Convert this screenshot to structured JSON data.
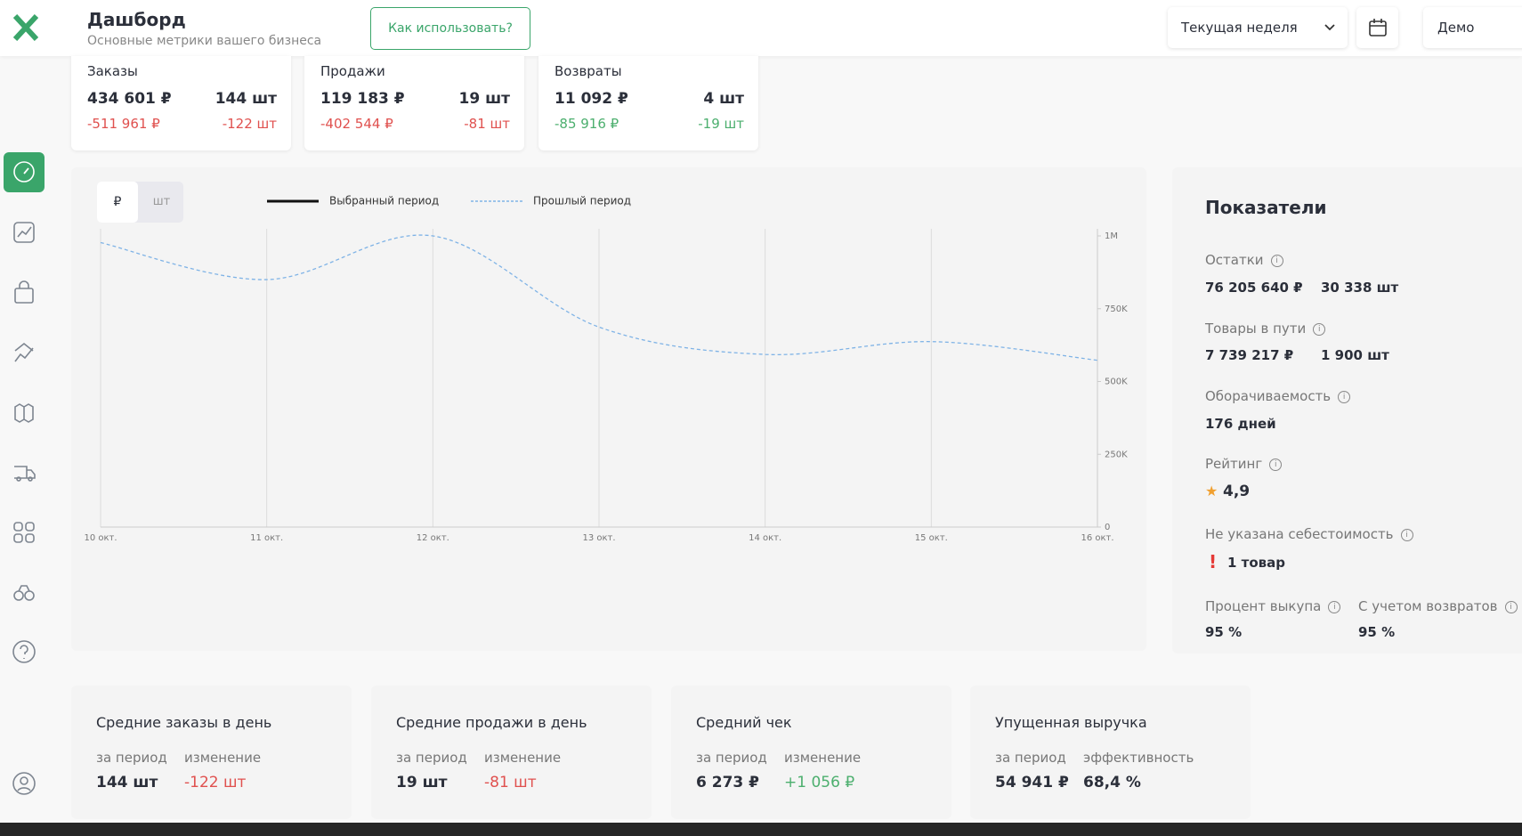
{
  "header": {
    "title": "Дашборд",
    "subtitle": "Основные метрики вашего бизнеса",
    "help_button": "Как использовать?",
    "period_select": "Текущая неделя",
    "user": "Демо"
  },
  "top_cards": [
    {
      "title": "Заказы",
      "amount": "434 601 ₽",
      "count": "144 шт",
      "amount_change": "-511 961 ₽",
      "count_change": "-122 шт",
      "change_color": "#e0514f"
    },
    {
      "title": "Продажи",
      "amount": "119 183 ₽",
      "count": "19 шт",
      "amount_change": "-402 544 ₽",
      "count_change": "-81 шт",
      "change_color": "#e0514f"
    },
    {
      "title": "Возвраты",
      "amount": "11 092 ₽",
      "count": "4 шт",
      "amount_change": "-85 916 ₽",
      "count_change": "-19 шт",
      "change_color": "#4caf6e"
    }
  ],
  "unit_toggle": [
    "₽",
    "шт"
  ],
  "chart_data": {
    "type": "line",
    "categories": [
      "10 окт.",
      "11 окт.",
      "12 окт.",
      "13 окт.",
      "14 окт.",
      "15 окт.",
      "16 окт."
    ],
    "series": [
      {
        "name": "Выбранный период",
        "color": "#111111",
        "values": [
          null,
          null,
          null,
          null,
          null,
          null,
          null
        ]
      },
      {
        "name": "Прошлый период",
        "color": "#7fb3e6",
        "dashed": true,
        "values": [
          977000,
          850000,
          1000000,
          687000,
          593000,
          637000,
          573000
        ]
      }
    ],
    "ylim": [
      0,
      1000000
    ],
    "yticks": [
      0,
      {
        "value": 250000,
        "label": "250K"
      },
      {
        "value": 500000,
        "label": "500K"
      },
      {
        "value": 750000,
        "label": "750K"
      },
      {
        "value": 1000000,
        "label": "1M"
      }
    ]
  },
  "indicators": {
    "title": "Показатели",
    "items": [
      {
        "label": "Остатки",
        "values": [
          "76 205 640 ₽",
          "30 338 шт"
        ]
      },
      {
        "label": "Товары в пути",
        "values": [
          "7 739 217 ₽",
          "1 900 шт"
        ]
      },
      {
        "label": "Оборачиваемость",
        "values": [
          "176 дней"
        ]
      },
      {
        "label": "Рейтинг",
        "values": [
          "4,9"
        ]
      },
      {
        "label": "Не указана себестоимость",
        "values": [
          "1 товар"
        ]
      }
    ],
    "pairs": [
      {
        "label": "Процент выкупа",
        "value": "95 %"
      },
      {
        "label": "С учетом возвратов",
        "value": "95 %"
      }
    ]
  },
  "bottom_cards": [
    {
      "title": "Средние заказы в день",
      "col1": "за период",
      "col2": "изменение",
      "val1": "144 шт",
      "val2": "-122 шт",
      "val2_color": "#e0514f"
    },
    {
      "title": "Средние продажи в день",
      "col1": "за период",
      "col2": "изменение",
      "val1": "19 шт",
      "val2": "-81 шт",
      "val2_color": "#e0514f"
    },
    {
      "title": "Средний чек",
      "col1": "за период",
      "col2": "изменение",
      "val1": "6 273 ₽",
      "val2": "+1 056 ₽",
      "val2_color": "#4caf6e"
    },
    {
      "title": "Упущенная выручка",
      "col1": "за период",
      "col2": "эффективность",
      "val1": "54 941 ₽",
      "val2": "68,4 %",
      "val2_color": "#2b2f3a"
    }
  ]
}
